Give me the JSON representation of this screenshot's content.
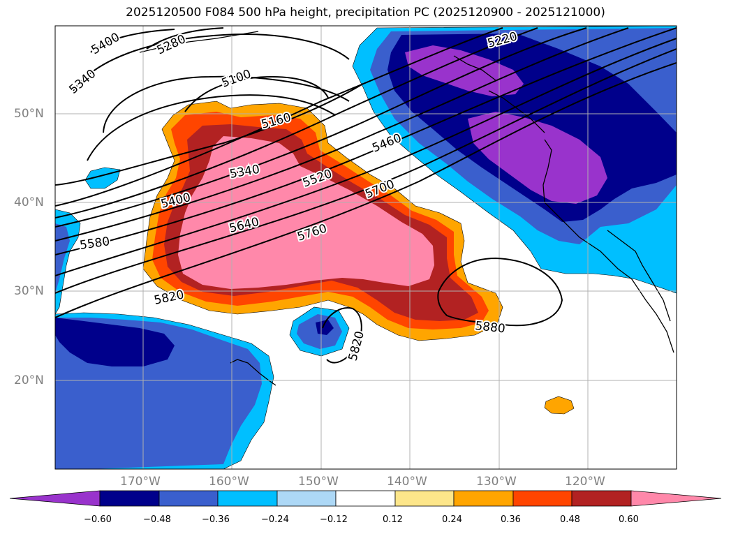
{
  "title": "2025120500 F084 500 hPa height, precipitation PC (2025120900 - 2025121000)",
  "lat_labels": [
    "50°N",
    "40°N",
    "30°N",
    "20°N"
  ],
  "lon_labels": [
    "170°W",
    "160°W",
    "150°W",
    "140°W",
    "130°W",
    "120°W"
  ],
  "contour_labels": [
    "5400",
    "5280",
    "5340",
    "5100",
    "5160",
    "5460",
    "5340",
    "5520",
    "5700",
    "5400",
    "5640",
    "5760",
    "5580",
    "5820",
    "5880",
    "5820",
    "5220"
  ],
  "colorbar": {
    "ticks": [
      "−0.60",
      "−0.48",
      "−0.36",
      "−0.24",
      "−0.12",
      "0.12",
      "0.24",
      "0.36",
      "0.48",
      "0.60"
    ],
    "colors": [
      "#9933cc",
      "#00008b",
      "#3a5fcd",
      "#00bfff",
      "#add8f6",
      "#ffffff",
      "#fde68a",
      "#ffa500",
      "#ff4500",
      "#b22222",
      "#ff88aa"
    ]
  },
  "colors": {
    "pink": "#ff88aa",
    "darkred": "#b22222",
    "redorange": "#ff4500",
    "orange": "#ffa500",
    "purple": "#9933cc",
    "navy": "#00008b",
    "royal": "#3a5fcd",
    "sky": "#00bfff"
  }
}
